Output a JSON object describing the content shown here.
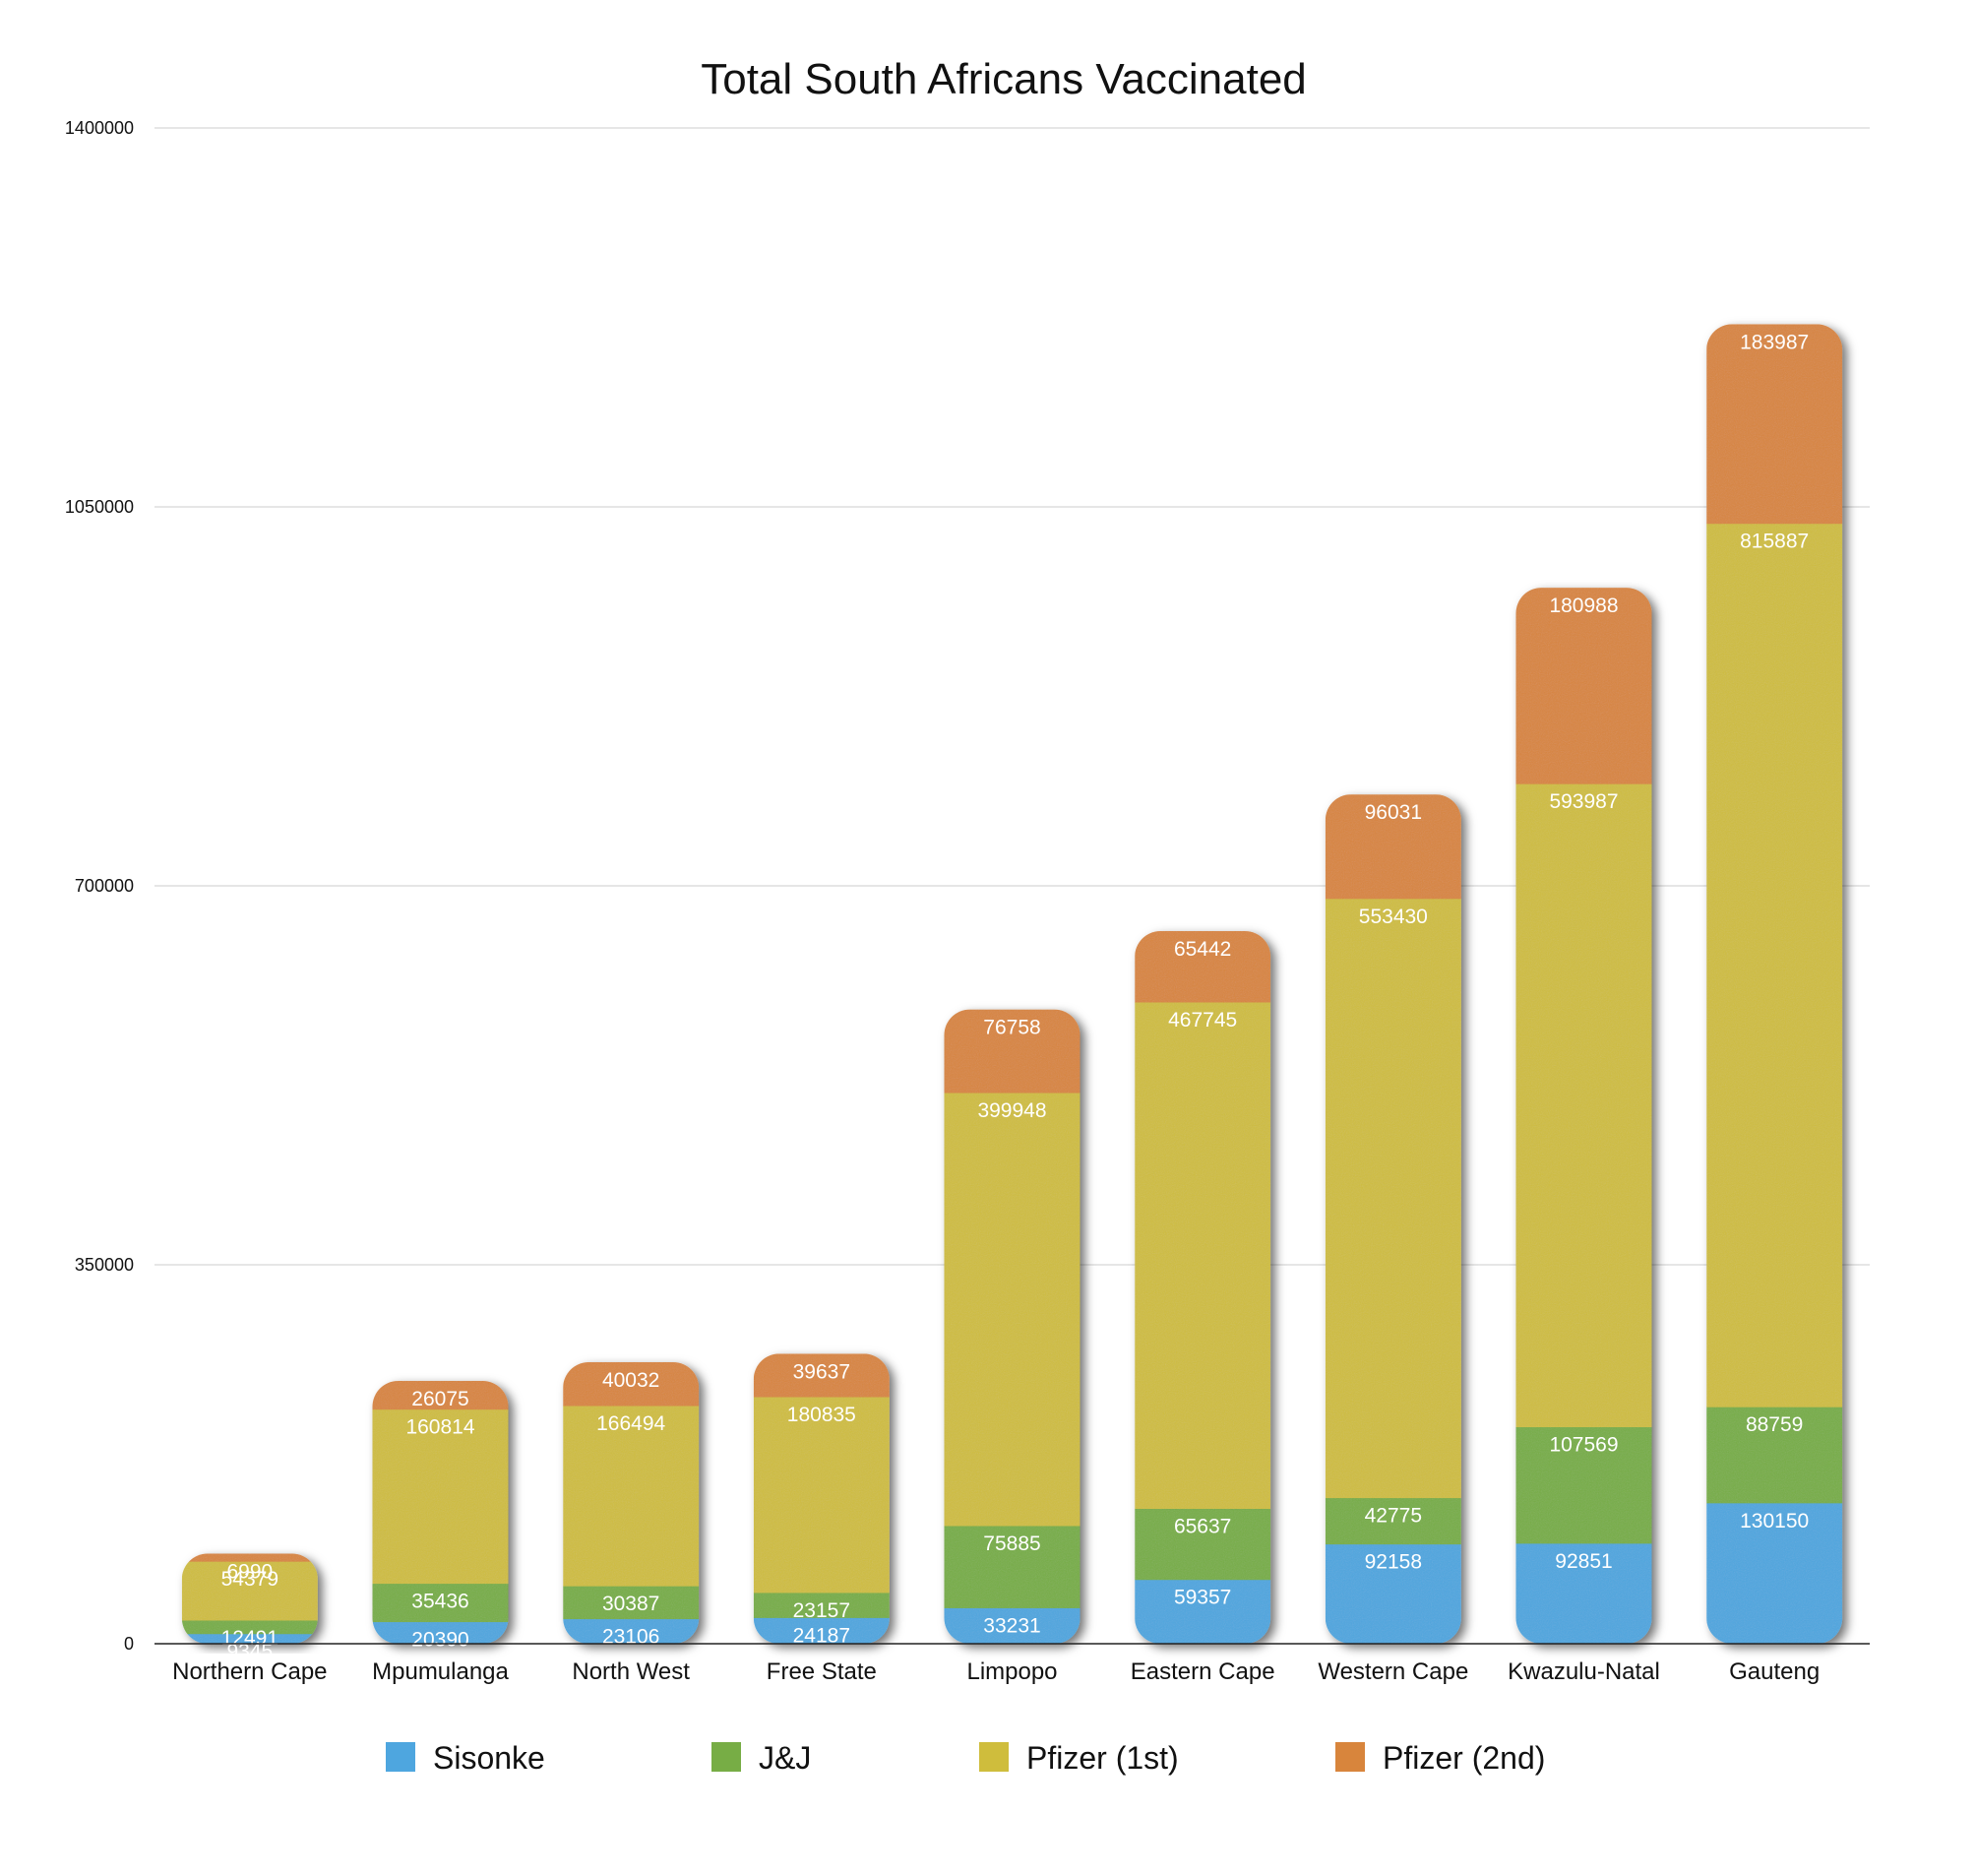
{
  "chart_data": {
    "type": "bar",
    "stacked": true,
    "title": "Total South Africans Vaccinated",
    "xlabel": "",
    "ylabel": "",
    "ylim": [
      0,
      1400000
    ],
    "yticks": [
      "0",
      "350000",
      "700000",
      "1050000",
      "1400000"
    ],
    "grid": true,
    "legend_position": "bottom",
    "categories": [
      "Northern Cape",
      "Mpumulanga",
      "North West",
      "Free State",
      "Limpopo",
      "Eastern Cape",
      "Western Cape",
      "Kwazulu-Natal",
      "Gauteng"
    ],
    "series": [
      {
        "name": "Sisonke",
        "color": "#4ea6df",
        "values": [
          9345,
          20390,
          23106,
          24187,
          33231,
          59357,
          92158,
          92851,
          130150
        ]
      },
      {
        "name": "J&J",
        "color": "#77ad45",
        "values": [
          12491,
          35436,
          30387,
          23157,
          75885,
          65637,
          42775,
          107569,
          88759
        ]
      },
      {
        "name": "Pfizer (1st)",
        "color": "#cfbd3c",
        "values": [
          54379,
          160814,
          166494,
          180835,
          399948,
          467745,
          553430,
          593987,
          815887
        ]
      },
      {
        "name": "Pfizer (2nd)",
        "color": "#d8853c",
        "values": [
          6990,
          26075,
          40032,
          39637,
          76758,
          65442,
          96031,
          180988,
          183987
        ]
      }
    ]
  }
}
